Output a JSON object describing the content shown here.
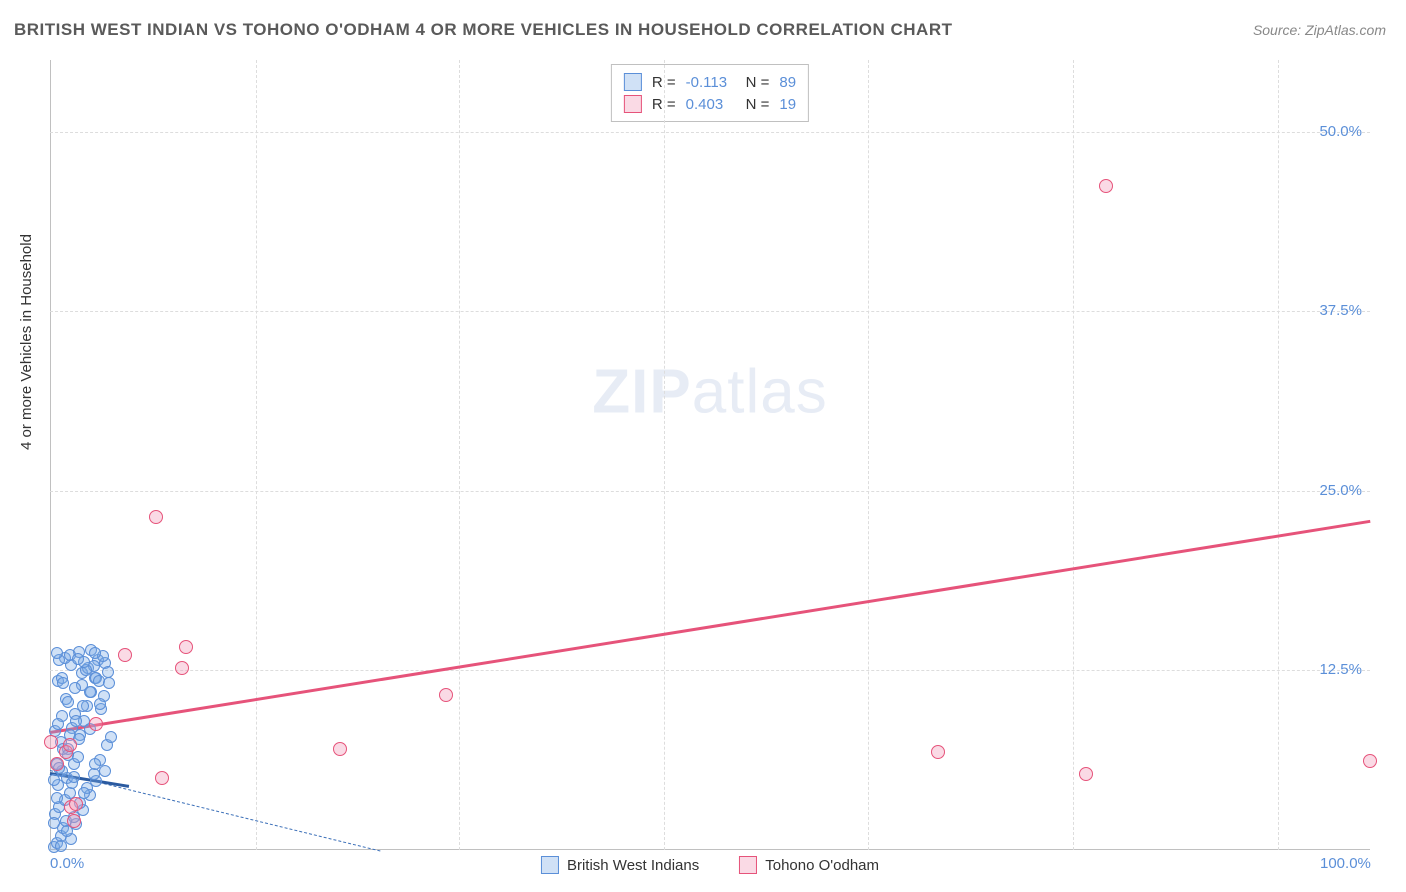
{
  "title": "BRITISH WEST INDIAN VS TOHONO O'ODHAM 4 OR MORE VEHICLES IN HOUSEHOLD CORRELATION CHART",
  "source": "Source: ZipAtlas.com",
  "y_axis_label": "4 or more Vehicles in Household",
  "watermark": {
    "bold": "ZIP",
    "light": "atlas"
  },
  "chart": {
    "type": "scatter",
    "xlim": [
      0,
      100
    ],
    "ylim": [
      0,
      55
    ],
    "background_color": "#ffffff",
    "grid_color": "#dddddd",
    "axis_color": "#c0c0c0",
    "tick_color": "#5b8fd8",
    "y_ticks": [
      {
        "value": 12.5,
        "label": "12.5%"
      },
      {
        "value": 25.0,
        "label": "25.0%"
      },
      {
        "value": 37.5,
        "label": "37.5%"
      },
      {
        "value": 50.0,
        "label": "50.0%"
      }
    ],
    "x_ticks": [
      {
        "value": 0,
        "label": "0.0%"
      },
      {
        "value": 100,
        "label": "100.0%"
      }
    ],
    "x_grid_values": [
      15.6,
      31.0,
      46.5,
      62.0,
      77.5,
      93.0
    ],
    "series": [
      {
        "name": "British West Indians",
        "fill_color": "rgba(120,170,230,0.35)",
        "stroke_color": "#5b8fd8",
        "marker_size": 12,
        "reg_line": {
          "x1": 0,
          "y1": 5.6,
          "x2": 25,
          "y2": 0,
          "color": "#3b6fb8",
          "dash": true,
          "width": 1.5
        },
        "solid_line": {
          "x1": 0,
          "y1": 5.4,
          "x2": 6,
          "y2": 4.5,
          "color": "#2a5aa0",
          "width": 3
        },
        "points": [
          [
            0.3,
            0.2
          ],
          [
            0.5,
            0.5
          ],
          [
            0.8,
            1.0
          ],
          [
            1.0,
            1.5
          ],
          [
            1.2,
            2.0
          ],
          [
            0.4,
            2.5
          ],
          [
            0.7,
            3.0
          ],
          [
            1.1,
            3.5
          ],
          [
            1.5,
            4.0
          ],
          [
            0.6,
            4.5
          ],
          [
            1.3,
            5.0
          ],
          [
            0.9,
            5.5
          ],
          [
            1.8,
            6.0
          ],
          [
            2.1,
            6.5
          ],
          [
            1.4,
            7.0
          ],
          [
            0.8,
            7.5
          ],
          [
            2.3,
            8.0
          ],
          [
            1.7,
            8.5
          ],
          [
            2.6,
            9.0
          ],
          [
            1.9,
            9.5
          ],
          [
            2.8,
            10.0
          ],
          [
            1.2,
            10.5
          ],
          [
            3.1,
            11.0
          ],
          [
            2.4,
            11.5
          ],
          [
            3.4,
            12.0
          ],
          [
            1.6,
            0.8
          ],
          [
            2.0,
            1.8
          ],
          [
            2.5,
            2.8
          ],
          [
            3.0,
            3.8
          ],
          [
            3.5,
            4.8
          ],
          [
            0.5,
            6.0
          ],
          [
            1.0,
            7.0
          ],
          [
            1.5,
            8.0
          ],
          [
            2.0,
            9.0
          ],
          [
            2.5,
            10.0
          ],
          [
            3.0,
            11.0
          ],
          [
            3.5,
            12.0
          ],
          [
            0.8,
            0.3
          ],
          [
            1.3,
            1.3
          ],
          [
            1.8,
            2.3
          ],
          [
            2.3,
            3.3
          ],
          [
            2.8,
            4.3
          ],
          [
            3.3,
            5.3
          ],
          [
            3.8,
            6.3
          ],
          [
            4.3,
            7.3
          ],
          [
            0.4,
            8.3
          ],
          [
            0.9,
            9.3
          ],
          [
            1.4,
            10.3
          ],
          [
            1.9,
            11.3
          ],
          [
            2.4,
            12.3
          ],
          [
            2.9,
            12.7
          ],
          [
            3.6,
            13.2
          ],
          [
            4.2,
            13.0
          ],
          [
            3.3,
            12.8
          ],
          [
            4.0,
            13.5
          ],
          [
            3.7,
            11.8
          ],
          [
            2.7,
            12.5
          ],
          [
            1.6,
            12.9
          ],
          [
            0.6,
            11.8
          ],
          [
            1.1,
            13.4
          ],
          [
            2.2,
            13.8
          ],
          [
            3.1,
            13.9
          ],
          [
            0.7,
            13.2
          ],
          [
            1.5,
            13.6
          ],
          [
            2.6,
            13.1
          ],
          [
            3.4,
            13.7
          ],
          [
            4.4,
            12.4
          ],
          [
            0.9,
            12.0
          ],
          [
            2.1,
            13.3
          ],
          [
            0.5,
            13.7
          ],
          [
            1.7,
            4.7
          ],
          [
            3.9,
            9.8
          ],
          [
            4.1,
            10.7
          ],
          [
            4.5,
            11.6
          ],
          [
            0.3,
            4.9
          ],
          [
            0.6,
            8.8
          ],
          [
            1.0,
            11.6
          ],
          [
            1.4,
            6.6
          ],
          [
            1.8,
            5.1
          ],
          [
            2.2,
            7.7
          ],
          [
            2.6,
            4.0
          ],
          [
            3.0,
            8.4
          ],
          [
            3.4,
            6.0
          ],
          [
            3.8,
            10.2
          ],
          [
            4.2,
            5.5
          ],
          [
            4.6,
            7.9
          ],
          [
            0.3,
            1.9
          ],
          [
            0.5,
            3.6
          ],
          [
            0.7,
            5.7
          ]
        ]
      },
      {
        "name": "Tohono O'odham",
        "fill_color": "rgba(240,150,180,0.35)",
        "stroke_color": "#e6537a",
        "marker_size": 14,
        "reg_line": {
          "x1": 0,
          "y1": 8.3,
          "x2": 100,
          "y2": 23.0,
          "color": "#e6537a",
          "dash": false,
          "width": 2.5
        },
        "points": [
          [
            0.1,
            7.5
          ],
          [
            0.5,
            6.0
          ],
          [
            1.2,
            6.8
          ],
          [
            1.5,
            7.3
          ],
          [
            1.6,
            3.0
          ],
          [
            2.0,
            3.2
          ],
          [
            1.8,
            2.0
          ],
          [
            3.5,
            8.8
          ],
          [
            8.0,
            23.2
          ],
          [
            5.7,
            13.6
          ],
          [
            10.3,
            14.1
          ],
          [
            10.0,
            12.7
          ],
          [
            8.5,
            5.0
          ],
          [
            22.0,
            7.0
          ],
          [
            30.0,
            10.8
          ],
          [
            67.3,
            6.8
          ],
          [
            78.5,
            5.3
          ],
          [
            80.0,
            46.2
          ],
          [
            100.0,
            6.2
          ]
        ]
      }
    ]
  },
  "stats": {
    "rows": [
      {
        "swatch_fill": "rgba(120,170,230,0.35)",
        "swatch_stroke": "#5b8fd8",
        "r_label": "R =",
        "r_value": "-0.113",
        "n_label": "N =",
        "n_value": "89"
      },
      {
        "swatch_fill": "rgba(240,150,180,0.35)",
        "swatch_stroke": "#e6537a",
        "r_label": "R =",
        "r_value": "0.403",
        "n_label": "N =",
        "n_value": "19"
      }
    ]
  },
  "legend": {
    "items": [
      {
        "fill": "rgba(120,170,230,0.35)",
        "stroke": "#5b8fd8",
        "label": "British West Indians"
      },
      {
        "fill": "rgba(240,150,180,0.35)",
        "stroke": "#e6537a",
        "label": "Tohono O'odham"
      }
    ]
  }
}
